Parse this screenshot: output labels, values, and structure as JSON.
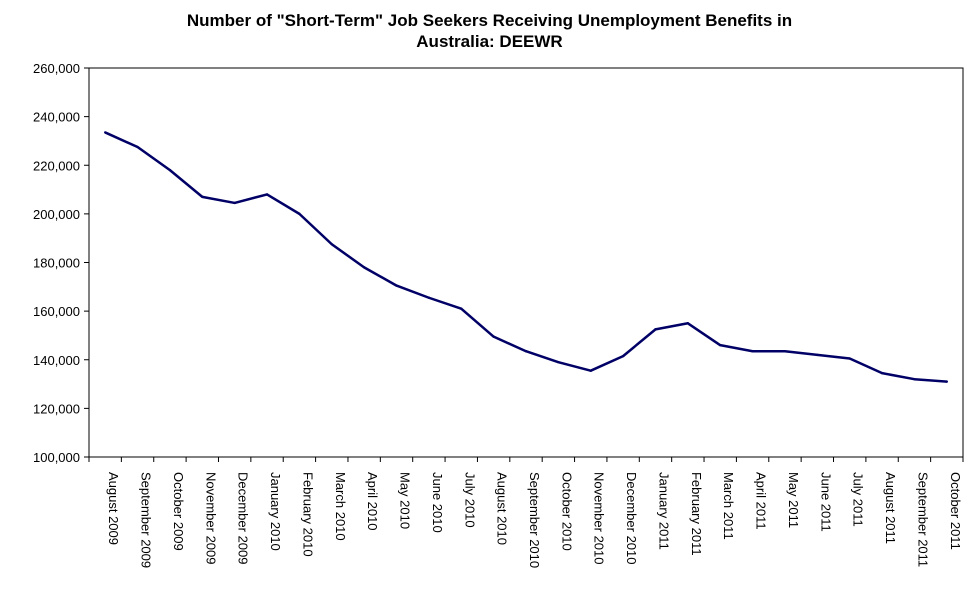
{
  "chart_data": {
    "type": "line",
    "title_line1": "Number of \"Short-Term\" Job Seekers Receiving Unemployment Benefits in",
    "title_line2": "Australia: DEEWR",
    "xlabel": "",
    "ylabel": "",
    "ylim": [
      100000,
      260000
    ],
    "ytick_step": 20000,
    "yticks": [
      "100,000",
      "120,000",
      "140,000",
      "160,000",
      "180,000",
      "200,000",
      "220,000",
      "240,000",
      "260,000"
    ],
    "grid": false,
    "legend": "none",
    "categories": [
      "August 2009",
      "September 2009",
      "October 2009",
      "November 2009",
      "December 2009",
      "January 2010",
      "February 2010",
      "March 2010",
      "April 2010",
      "May 2010",
      "June 2010",
      "July 2010",
      "August 2010",
      "September 2010",
      "October 2010",
      "November 2010",
      "December 2010",
      "January 2011",
      "February 2011",
      "March 2011",
      "April 2011",
      "May 2011",
      "June 2011",
      "July 2011",
      "August 2011",
      "September 2011",
      "October 2011"
    ],
    "series": [
      {
        "color": "#000066",
        "values": [
          233500,
          227500,
          218000,
          207000,
          204500,
          208000,
          200000,
          187500,
          178000,
          170500,
          165500,
          161000,
          149500,
          143500,
          139000,
          135500,
          141500,
          152500,
          155000,
          146000,
          143500,
          143500,
          142000,
          140500,
          134500,
          132000,
          131000
        ]
      }
    ]
  }
}
